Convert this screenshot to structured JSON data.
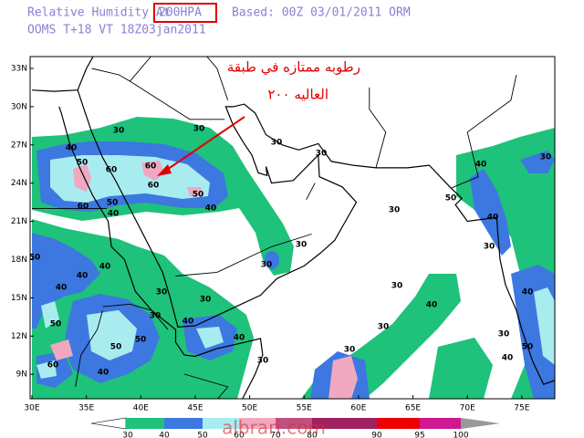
{
  "header": {
    "title": "Relative Humidity At",
    "level": "200HPA",
    "based": "Based: 00Z  03/01/2011  ORM",
    "line2": "OOMS   T+18  VT  18Z03jan2011"
  },
  "map": {
    "lat_labels": [
      "33N",
      "30N",
      "27N",
      "24N",
      "21N",
      "18N",
      "15N",
      "12N",
      "9N"
    ],
    "lon_labels": [
      "30E",
      "35E",
      "40E",
      "45E",
      "50E",
      "55E",
      "60E",
      "65E",
      "70E",
      "75E"
    ],
    "contour_labels": [
      "30",
      "30",
      "40",
      "50",
      "60",
      "60",
      "60",
      "50",
      "40",
      "50",
      "60",
      "40",
      "30",
      "30",
      "30",
      "40",
      "50",
      "30",
      "30",
      "40",
      "30",
      "50",
      "30",
      "40",
      "40",
      "40",
      "30",
      "30",
      "30",
      "40",
      "40",
      "30",
      "40",
      "50",
      "30",
      "40",
      "50",
      "50",
      "30",
      "40",
      "30",
      "50",
      "60",
      "40",
      "30"
    ]
  },
  "annotation": {
    "line1": "رطوبه ممتازه في طبقة",
    "line2": "العاليه ۲۰۰"
  },
  "colorbar": {
    "labels": [
      "30",
      "40",
      "50",
      "60",
      "70",
      "80",
      "90",
      "95",
      "100"
    ]
  },
  "watermark": "albrari.com"
}
